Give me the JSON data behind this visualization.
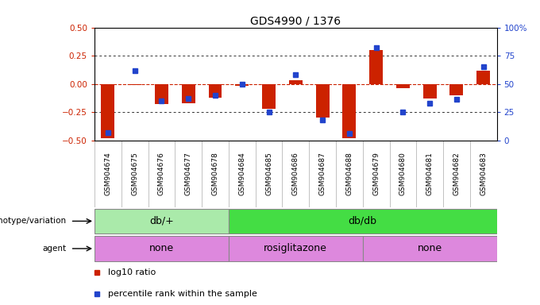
{
  "title": "GDS4990 / 1376",
  "samples": [
    "GSM904674",
    "GSM904675",
    "GSM904676",
    "GSM904677",
    "GSM904678",
    "GSM904684",
    "GSM904685",
    "GSM904686",
    "GSM904687",
    "GSM904688",
    "GSM904679",
    "GSM904680",
    "GSM904681",
    "GSM904682",
    "GSM904683"
  ],
  "log10_ratio": [
    -0.48,
    -0.01,
    -0.18,
    -0.17,
    -0.12,
    -0.02,
    -0.22,
    0.03,
    -0.3,
    -0.48,
    0.3,
    -0.04,
    -0.13,
    -0.1,
    0.12
  ],
  "percentile": [
    7,
    62,
    35,
    37,
    40,
    50,
    25,
    58,
    18,
    6,
    82,
    25,
    33,
    36,
    65
  ],
  "ylim": [
    -0.5,
    0.5
  ],
  "yticks_left": [
    -0.5,
    -0.25,
    0,
    0.25,
    0.5
  ],
  "yticks_right": [
    0,
    25,
    50,
    75,
    100
  ],
  "bar_color": "#cc2200",
  "dot_color": "#2244cc",
  "zero_line_color": "#cc2200",
  "dotted_line_color": "#333333",
  "background_color": "#ffffff",
  "plot_bg": "#f0f0f0",
  "genotype_groups": [
    {
      "label": "db/+",
      "start": 0,
      "end": 5,
      "color": "#aaeaaa"
    },
    {
      "label": "db/db",
      "start": 5,
      "end": 15,
      "color": "#44dd44"
    }
  ],
  "agent_groups": [
    {
      "label": "none",
      "start": 0,
      "end": 5,
      "color": "#dd88dd"
    },
    {
      "label": "rosiglitazone",
      "start": 5,
      "end": 10,
      "color": "#dd88dd"
    },
    {
      "label": "none",
      "start": 10,
      "end": 15,
      "color": "#dd88dd"
    }
  ],
  "legend_red": "log10 ratio",
  "legend_blue": "percentile rank within the sample",
  "title_fontsize": 10,
  "tick_fontsize": 7.5,
  "sample_fontsize": 6.5,
  "label_fontsize": 9,
  "legend_fontsize": 8
}
